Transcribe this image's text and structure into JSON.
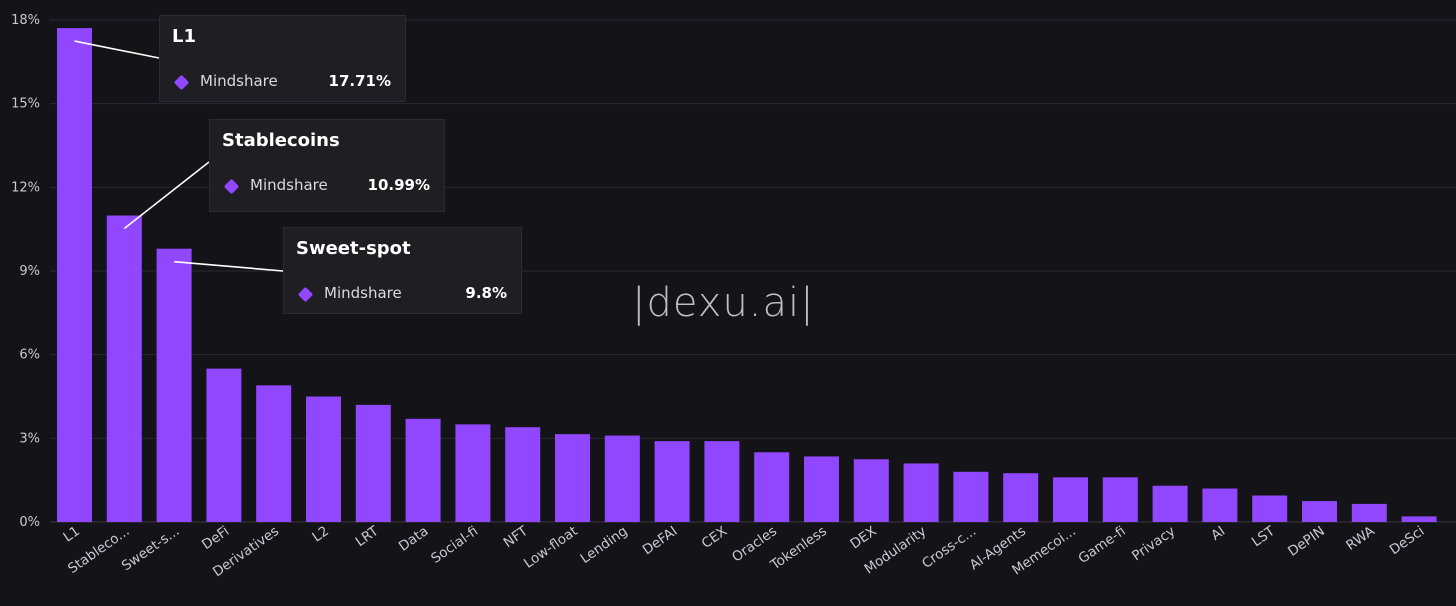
{
  "chart_data": {
    "type": "bar",
    "categories": [
      "L1",
      "Stableco...",
      "Sweet-s...",
      "DeFi",
      "Derivatives",
      "L2",
      "LRT",
      "Data",
      "Social-fi",
      "NFT",
      "Low-float",
      "Lending",
      "DeFAI",
      "CEX",
      "Oracles",
      "Tokenless",
      "DEX",
      "Modularity",
      "Cross-c...",
      "AI-Agents",
      "Memecoi...",
      "Game-fi",
      "Privacy",
      "AI",
      "LST",
      "DePIN",
      "RWA",
      "DeSci"
    ],
    "series": [
      {
        "name": "Mindshare",
        "values": [
          17.71,
          10.99,
          9.8,
          5.5,
          4.9,
          4.5,
          4.2,
          3.7,
          3.5,
          3.4,
          3.15,
          3.1,
          2.9,
          2.9,
          2.5,
          2.35,
          2.25,
          2.1,
          1.8,
          1.75,
          1.6,
          1.6,
          1.3,
          1.2,
          0.95,
          0.75,
          0.65,
          0.2
        ]
      }
    ],
    "yticks": [
      "0%",
      "3%",
      "6%",
      "9%",
      "12%",
      "15%",
      "18%"
    ],
    "ylim": [
      0,
      18
    ],
    "grid": true,
    "bar_color": "#9146ff"
  },
  "tooltips": [
    {
      "title": "L1",
      "label": "Mindshare",
      "value": "17.71%"
    },
    {
      "title": "Stablecoins",
      "label": "Mindshare",
      "value": "10.99%"
    },
    {
      "title": "Sweet-spot",
      "label": "Mindshare",
      "value": "9.8%"
    }
  ],
  "watermark": "|dexu.ai|",
  "colors": {
    "background": "#141317",
    "bar": "#9146ff",
    "tooltip_bg": "#1f1e23"
  }
}
